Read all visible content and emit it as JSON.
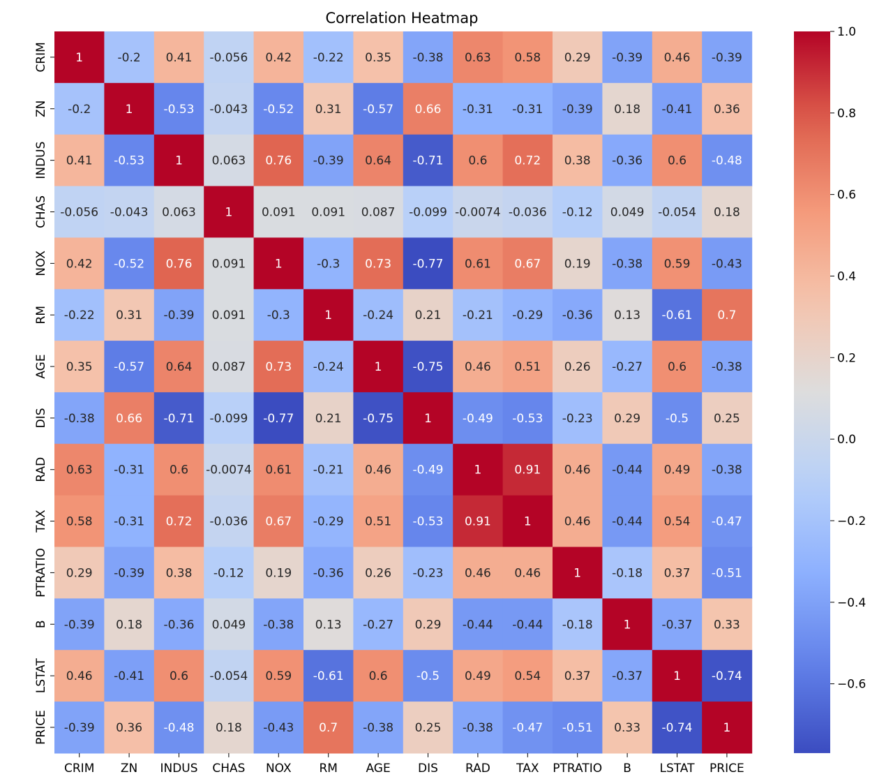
{
  "chart_data": {
    "type": "heatmap",
    "title": "Correlation Heatmap",
    "x_labels": [
      "CRIM",
      "ZN",
      "INDUS",
      "CHAS",
      "NOX",
      "RM",
      "AGE",
      "DIS",
      "RAD",
      "TAX",
      "PTRATIO",
      "B",
      "LSTAT",
      "PRICE"
    ],
    "y_labels": [
      "CRIM",
      "ZN",
      "INDUS",
      "CHAS",
      "NOX",
      "RM",
      "AGE",
      "DIS",
      "RAD",
      "TAX",
      "PTRATIO",
      "B",
      "LSTAT",
      "PRICE"
    ],
    "annotations": [
      [
        "1",
        "-0.2",
        "0.41",
        "-0.056",
        "0.42",
        "-0.22",
        "0.35",
        "-0.38",
        "0.63",
        "0.58",
        "0.29",
        "-0.39",
        "0.46",
        "-0.39"
      ],
      [
        "-0.2",
        "1",
        "-0.53",
        "-0.043",
        "-0.52",
        "0.31",
        "-0.57",
        "0.66",
        "-0.31",
        "-0.31",
        "-0.39",
        "0.18",
        "-0.41",
        "0.36"
      ],
      [
        "0.41",
        "-0.53",
        "1",
        "0.063",
        "0.76",
        "-0.39",
        "0.64",
        "-0.71",
        "0.6",
        "0.72",
        "0.38",
        "-0.36",
        "0.6",
        "-0.48"
      ],
      [
        "-0.056",
        "-0.043",
        "0.063",
        "1",
        "0.091",
        "0.091",
        "0.087",
        "-0.099",
        "-0.0074",
        "-0.036",
        "-0.12",
        "0.049",
        "-0.054",
        "0.18"
      ],
      [
        "0.42",
        "-0.52",
        "0.76",
        "0.091",
        "1",
        "-0.3",
        "0.73",
        "-0.77",
        "0.61",
        "0.67",
        "0.19",
        "-0.38",
        "0.59",
        "-0.43"
      ],
      [
        "-0.22",
        "0.31",
        "-0.39",
        "0.091",
        "-0.3",
        "1",
        "-0.24",
        "0.21",
        "-0.21",
        "-0.29",
        "-0.36",
        "0.13",
        "-0.61",
        "0.7"
      ],
      [
        "0.35",
        "-0.57",
        "0.64",
        "0.087",
        "0.73",
        "-0.24",
        "1",
        "-0.75",
        "0.46",
        "0.51",
        "0.26",
        "-0.27",
        "0.6",
        "-0.38"
      ],
      [
        "-0.38",
        "0.66",
        "-0.71",
        "-0.099",
        "-0.77",
        "0.21",
        "-0.75",
        "1",
        "-0.49",
        "-0.53",
        "-0.23",
        "0.29",
        "-0.5",
        "0.25"
      ],
      [
        "0.63",
        "-0.31",
        "0.6",
        "-0.0074",
        "0.61",
        "-0.21",
        "0.46",
        "-0.49",
        "1",
        "0.91",
        "0.46",
        "-0.44",
        "0.49",
        "-0.38"
      ],
      [
        "0.58",
        "-0.31",
        "0.72",
        "-0.036",
        "0.67",
        "-0.29",
        "0.51",
        "-0.53",
        "0.91",
        "1",
        "0.46",
        "-0.44",
        "0.54",
        "-0.47"
      ],
      [
        "0.29",
        "-0.39",
        "0.38",
        "-0.12",
        "0.19",
        "-0.36",
        "0.26",
        "-0.23",
        "0.46",
        "0.46",
        "1",
        "-0.18",
        "0.37",
        "-0.51"
      ],
      [
        "-0.39",
        "0.18",
        "-0.36",
        "0.049",
        "-0.38",
        "0.13",
        "-0.27",
        "0.29",
        "-0.44",
        "-0.44",
        "-0.18",
        "1",
        "-0.37",
        "0.33"
      ],
      [
        "0.46",
        "-0.41",
        "0.6",
        "-0.054",
        "0.59",
        "-0.61",
        "0.6",
        "-0.5",
        "0.49",
        "0.54",
        "0.37",
        "-0.37",
        "1",
        "-0.74"
      ],
      [
        "-0.39",
        "0.36",
        "-0.48",
        "0.18",
        "-0.43",
        "0.7",
        "-0.38",
        "0.25",
        "-0.38",
        "-0.47",
        "-0.51",
        "0.33",
        "-0.74",
        "1"
      ]
    ],
    "colormap": "coolwarm",
    "vmin": -0.77,
    "vmax": 1.0,
    "colorbar_ticks": [
      "1.0",
      "0.8",
      "0.6",
      "0.4",
      "0.2",
      "0.0",
      "−0.2",
      "−0.4",
      "−0.6"
    ],
    "colorbar_tick_values": [
      1.0,
      0.8,
      0.6,
      0.4,
      0.2,
      0.0,
      -0.2,
      -0.4,
      -0.6
    ],
    "grid": false,
    "legend": "colorbar-right"
  }
}
